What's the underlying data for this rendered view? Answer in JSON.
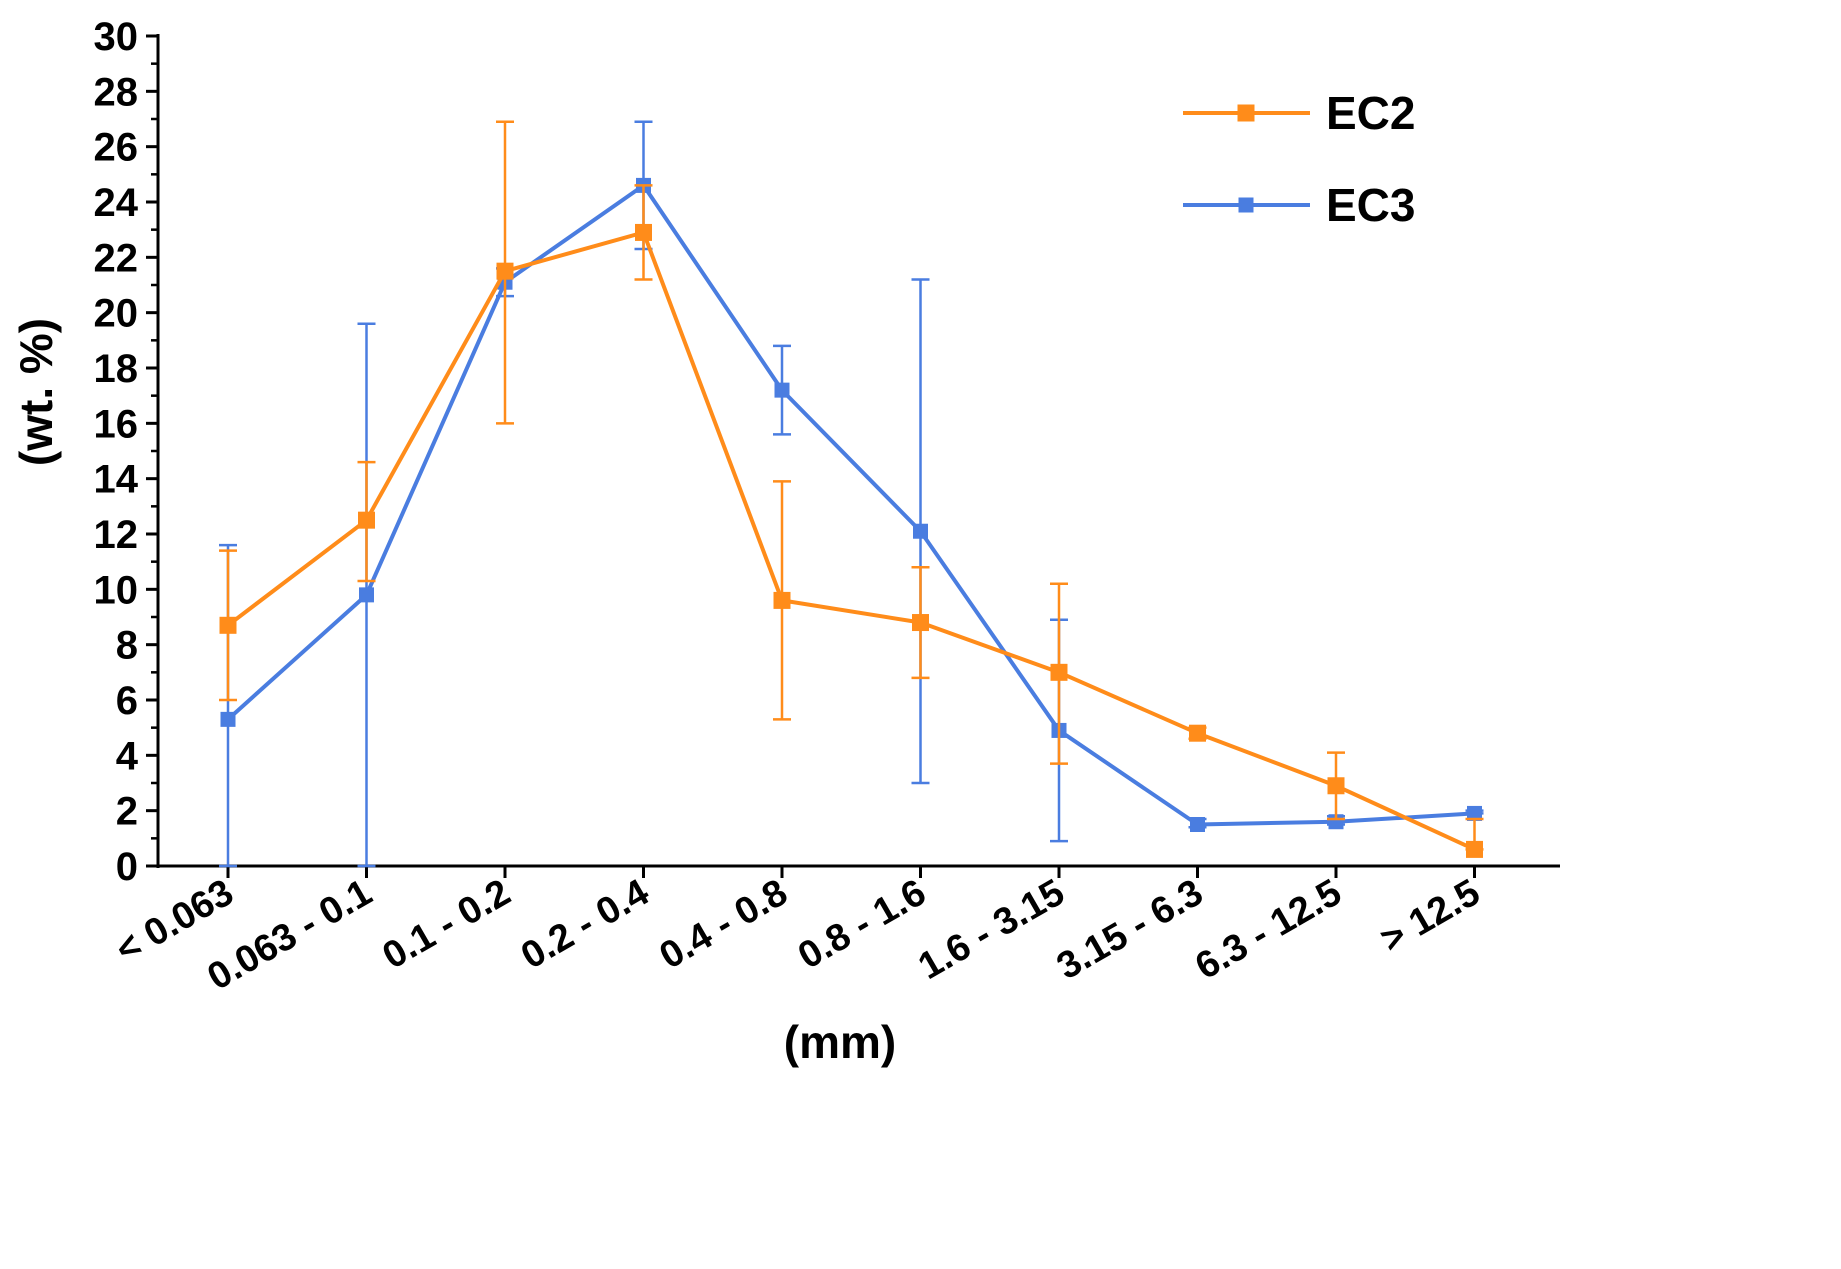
{
  "chart_data": {
    "type": "line",
    "title": "",
    "xlabel": "(mm)",
    "ylabel": "(wt. %)",
    "ylim": [
      0,
      30
    ],
    "yticks": [
      0,
      2,
      4,
      6,
      8,
      10,
      12,
      14,
      16,
      18,
      20,
      22,
      24,
      26,
      28,
      30
    ],
    "grid": false,
    "legend_position": "top-right",
    "categories": [
      "< 0.063",
      "0.063 - 0.1",
      "0.1 - 0.2",
      "0.2 - 0.4",
      "0.4 - 0.8",
      "0.8 - 1.6",
      "1.6 - 3.15",
      "3.15 - 6.3",
      "6.3 - 12.5",
      "> 12.5"
    ],
    "series": [
      {
        "name": "EC2",
        "color": "#ff8c1a",
        "values": [
          8.7,
          12.5,
          21.5,
          22.9,
          9.6,
          8.8,
          7.0,
          4.8,
          2.9,
          0.6
        ],
        "error_low": [
          6.0,
          10.3,
          16.0,
          21.2,
          5.3,
          6.8,
          3.7,
          4.6,
          1.7,
          0.6
        ],
        "error_high": [
          11.4,
          14.6,
          26.9,
          24.6,
          13.9,
          10.8,
          10.2,
          5.0,
          4.1,
          1.7
        ]
      },
      {
        "name": "EC3",
        "color": "#4a7de0",
        "values": [
          5.3,
          9.8,
          21.1,
          24.6,
          17.2,
          12.1,
          4.9,
          1.5,
          1.6,
          1.9
        ],
        "error_low": [
          0,
          0,
          20.6,
          22.3,
          15.6,
          3.0,
          0.9,
          1.4,
          1.5,
          1.9
        ],
        "error_high": [
          11.6,
          19.6,
          21.6,
          26.9,
          18.8,
          21.2,
          8.9,
          1.7,
          1.8,
          2.0
        ]
      }
    ]
  }
}
